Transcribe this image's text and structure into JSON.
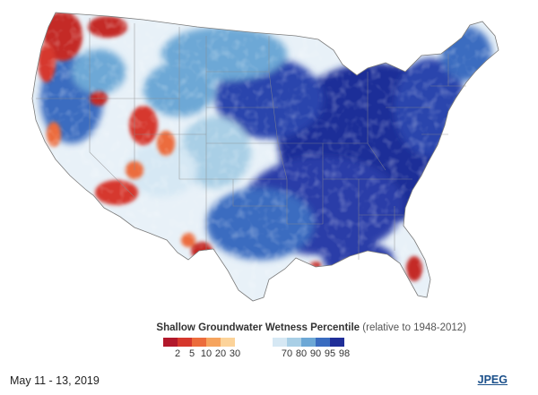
{
  "legend": {
    "title_main": "Shallow Groundwater Wetness Percentile",
    "title_sub": "(relative to 1948-2012)",
    "dry_colors": [
      "#b2182b",
      "#d6382d",
      "#ec6c3c",
      "#f6a45e",
      "#fcd39a"
    ],
    "wet_colors": [
      "#d6e8f4",
      "#a9cfe6",
      "#6da8d6",
      "#3a6cc0",
      "#1f2e98"
    ],
    "dry_ticks": [
      "2",
      "5",
      "10",
      "20",
      "30"
    ],
    "wet_ticks": [
      "70",
      "80",
      "90",
      "95",
      "98"
    ]
  },
  "caption": {
    "date": "May 11 - 13, 2019"
  },
  "link": {
    "label": "JPEG"
  },
  "map": {
    "palette": {
      "deep_blue": "#1f2e98",
      "mid_blue": "#3a6cc0",
      "light_blue": "#a9cfe6",
      "pale": "#e6f0f7",
      "red": "#c42a26",
      "orange": "#ec6c3c",
      "outline": "#8a8a8a"
    }
  }
}
